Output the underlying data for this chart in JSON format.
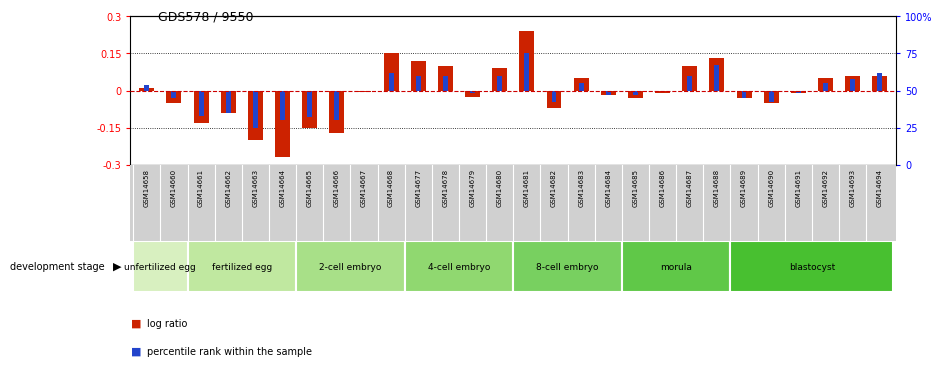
{
  "title": "GDS578 / 9550",
  "samples": [
    "GSM14658",
    "GSM14660",
    "GSM14661",
    "GSM14662",
    "GSM14663",
    "GSM14664",
    "GSM14665",
    "GSM14666",
    "GSM14667",
    "GSM14668",
    "GSM14677",
    "GSM14678",
    "GSM14679",
    "GSM14680",
    "GSM14681",
    "GSM14682",
    "GSM14683",
    "GSM14684",
    "GSM14685",
    "GSM14686",
    "GSM14687",
    "GSM14688",
    "GSM14689",
    "GSM14690",
    "GSM14691",
    "GSM14692",
    "GSM14693",
    "GSM14694"
  ],
  "log_ratio": [
    0.01,
    -0.05,
    -0.13,
    -0.09,
    -0.2,
    -0.27,
    -0.15,
    -0.17,
    -0.005,
    0.15,
    0.12,
    0.1,
    -0.025,
    0.09,
    0.24,
    -0.07,
    0.05,
    -0.02,
    -0.03,
    -0.01,
    0.1,
    0.13,
    -0.03,
    -0.05,
    -0.01,
    0.05,
    0.06,
    0.06
  ],
  "percentile_raw": [
    54,
    45,
    33,
    35,
    25,
    30,
    32,
    30,
    50,
    62,
    60,
    60,
    48,
    60,
    75,
    42,
    55,
    47,
    47,
    50,
    60,
    67,
    45,
    42,
    48,
    55,
    58,
    62
  ],
  "stages": [
    {
      "label": "unfertilized egg",
      "start": 0,
      "end": 2,
      "color": "#d8f0c0"
    },
    {
      "label": "fertilized egg",
      "start": 2,
      "end": 6,
      "color": "#c0e8a0"
    },
    {
      "label": "2-cell embryo",
      "start": 6,
      "end": 10,
      "color": "#a8e088"
    },
    {
      "label": "4-cell embryo",
      "start": 10,
      "end": 14,
      "color": "#90d870"
    },
    {
      "label": "8-cell embryo",
      "start": 14,
      "end": 18,
      "color": "#78d060"
    },
    {
      "label": "morula",
      "start": 18,
      "end": 22,
      "color": "#60c848"
    },
    {
      "label": "blastocyst",
      "start": 22,
      "end": 28,
      "color": "#48c030"
    }
  ],
  "ylim": [
    -0.3,
    0.3
  ],
  "yticks_left": [
    -0.3,
    -0.15,
    0.0,
    0.15,
    0.3
  ],
  "yticks_right_vals": [
    0,
    25,
    50,
    75,
    100
  ],
  "bar_color_red": "#cc2200",
  "bar_color_blue": "#2244cc",
  "ref_line_color": "#cc0000",
  "background_color": "#ffffff",
  "xlabel_bg": "#d0d0d0"
}
